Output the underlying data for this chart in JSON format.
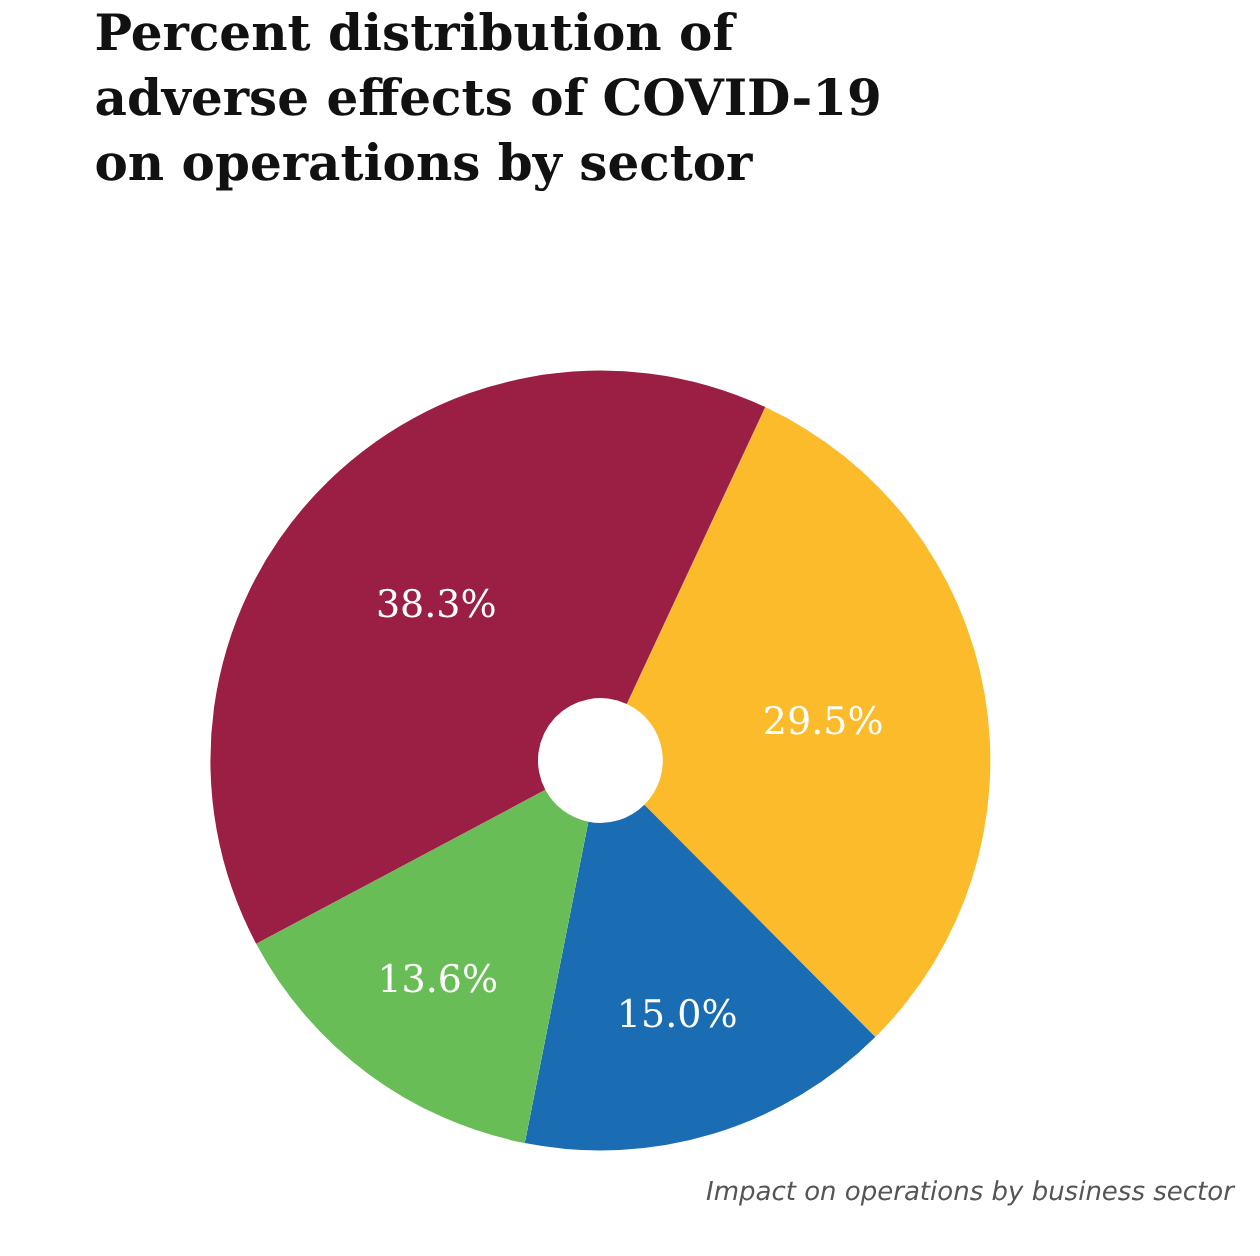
{
  "chart_data": {
    "type": "donut",
    "title": "Percent distribution of adverse effects of COVID-19 on operations by sector",
    "categories": [
      null,
      null,
      null,
      null
    ],
    "values": [
      29.5,
      15.0,
      13.6,
      38.3
    ],
    "value_labels": [
      "29.5%",
      "15.0%",
      "13.6%",
      "38.3%"
    ],
    "colors": [
      "#fbbb2b",
      "#1a6cb3",
      "#68bd57",
      "#9b1f45"
    ],
    "annotations": [
      "Impact on operations by business sector"
    ],
    "legend": false
  }
}
